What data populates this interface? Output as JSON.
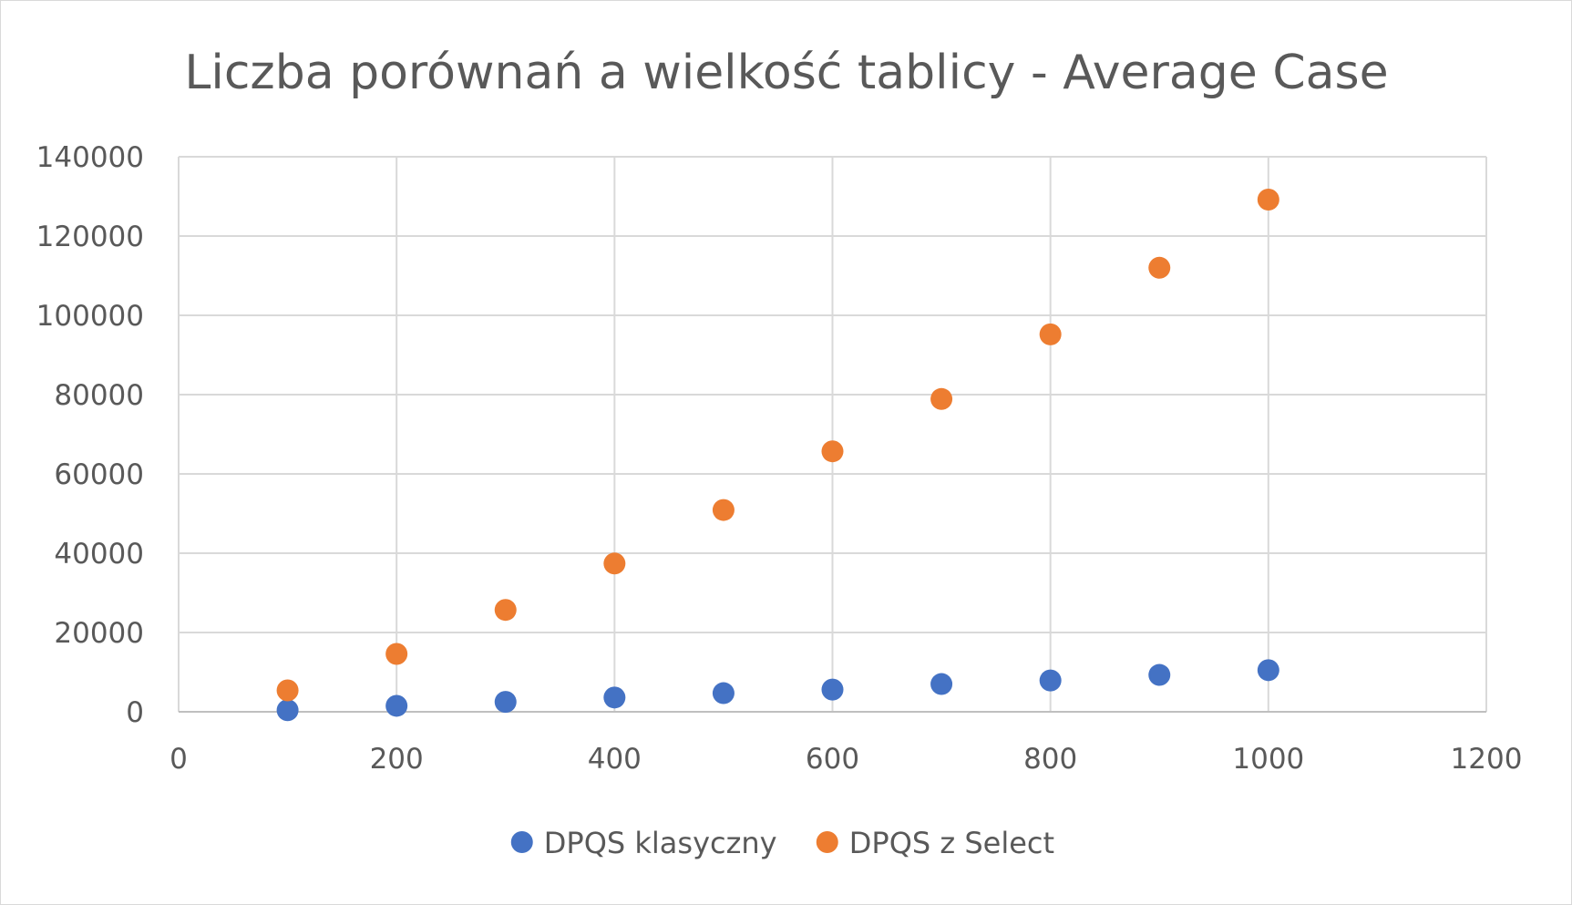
{
  "chart_data": {
    "type": "scatter",
    "title": "Liczba porównań a wielkość tablicy - Average Case",
    "xlabel": "",
    "ylabel": "",
    "xlim": [
      0,
      1200
    ],
    "ylim": [
      0,
      140000
    ],
    "x_ticks": [
      0,
      200,
      400,
      600,
      800,
      1000,
      1200
    ],
    "y_ticks": [
      0,
      20000,
      40000,
      60000,
      80000,
      100000,
      120000,
      140000
    ],
    "grid": true,
    "legend_position": "bottom",
    "series": [
      {
        "name": "DPQS klasyczny",
        "color": "#4472c4",
        "points": [
          {
            "x": 100,
            "y": 400
          },
          {
            "x": 200,
            "y": 1500
          },
          {
            "x": 300,
            "y": 2500
          },
          {
            "x": 400,
            "y": 3600
          },
          {
            "x": 500,
            "y": 4700
          },
          {
            "x": 600,
            "y": 5600
          },
          {
            "x": 700,
            "y": 7000
          },
          {
            "x": 800,
            "y": 7900
          },
          {
            "x": 900,
            "y": 9300
          },
          {
            "x": 1000,
            "y": 10500
          }
        ]
      },
      {
        "name": "DPQS z Select",
        "color": "#ed7d31",
        "points": [
          {
            "x": 100,
            "y": 5400
          },
          {
            "x": 200,
            "y": 14600
          },
          {
            "x": 300,
            "y": 25700
          },
          {
            "x": 400,
            "y": 37400
          },
          {
            "x": 500,
            "y": 50900
          },
          {
            "x": 600,
            "y": 65700
          },
          {
            "x": 700,
            "y": 78900
          },
          {
            "x": 800,
            "y": 95200
          },
          {
            "x": 900,
            "y": 112000
          },
          {
            "x": 1000,
            "y": 129200
          }
        ]
      }
    ]
  }
}
